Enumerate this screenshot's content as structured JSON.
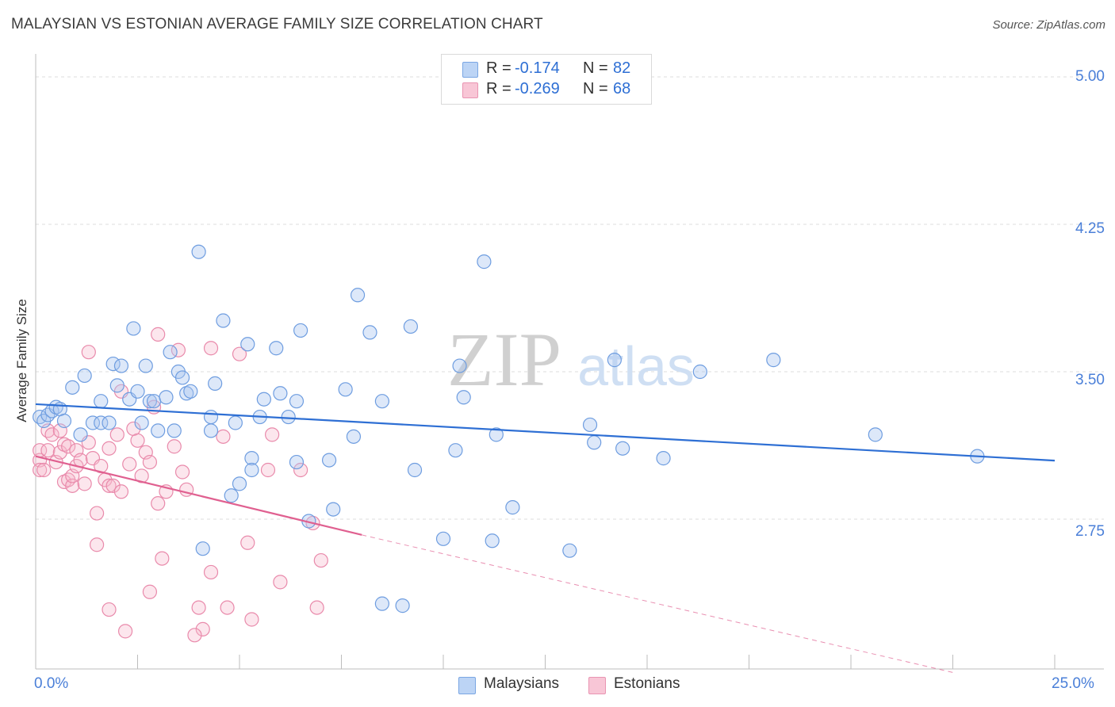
{
  "header": {
    "title": "MALAYSIAN VS ESTONIAN AVERAGE FAMILY SIZE CORRELATION CHART",
    "source": "Source: ZipAtlas.com"
  },
  "watermark": {
    "zip": "ZIP",
    "atlas": "atlas"
  },
  "legend_top": {
    "rows": [
      {
        "r_label": "R =",
        "r_value": "-0.174",
        "n_label": "N =",
        "n_value": "82"
      },
      {
        "r_label": "R =",
        "r_value": "-0.269",
        "n_label": "N =",
        "n_value": "68"
      }
    ]
  },
  "legend_bottom": {
    "series1": "Malaysians",
    "series2": "Estonians"
  },
  "axis": {
    "x_min_label": "0.0%",
    "x_max_label": "25.0%",
    "y_label": "Average Family Size",
    "y_ticks": [
      "5.00",
      "4.25",
      "3.50",
      "2.75"
    ]
  },
  "colors": {
    "blue_fill": "#a9c6f0",
    "blue_stroke": "#6e9de0",
    "blue_line": "#2e6fd4",
    "pink_fill": "#f5b8cc",
    "pink_stroke": "#e98aab",
    "pink_line": "#e06090",
    "grid": "#dddddd",
    "axis_text": "#4a7fd8"
  },
  "chart_data": {
    "type": "scatter",
    "title": "MALAYSIAN VS ESTONIAN AVERAGE FAMILY SIZE CORRELATION CHART",
    "xlabel": "",
    "ylabel": "Average Family Size",
    "xlim": [
      0,
      25
    ],
    "ylim": [
      2.0,
      5.1
    ],
    "y_ticks": [
      2.75,
      3.5,
      4.25,
      5.0
    ],
    "x_ticks": [
      0,
      2.5,
      5,
      7.5,
      10,
      12.5,
      15,
      17.5,
      20,
      22.5,
      25
    ],
    "grid": true,
    "legend_position": "bottom",
    "series": [
      {
        "name": "Malaysians",
        "r": -0.174,
        "n": 82,
        "trend": {
          "x": [
            0,
            25
          ],
          "y": [
            3.335,
            3.048
          ]
        },
        "points": [
          [
            0.1,
            3.27
          ],
          [
            0.2,
            3.25
          ],
          [
            0.3,
            3.28
          ],
          [
            0.4,
            3.3
          ],
          [
            0.5,
            3.32
          ],
          [
            0.6,
            3.31
          ],
          [
            0.7,
            3.25
          ],
          [
            0.9,
            3.42
          ],
          [
            1.1,
            3.18
          ],
          [
            1.2,
            3.48
          ],
          [
            1.4,
            3.24
          ],
          [
            1.6,
            3.24
          ],
          [
            1.6,
            3.35
          ],
          [
            1.8,
            3.24
          ],
          [
            1.9,
            3.54
          ],
          [
            2.0,
            3.43
          ],
          [
            2.1,
            3.53
          ],
          [
            2.3,
            3.36
          ],
          [
            2.4,
            3.72
          ],
          [
            2.5,
            3.4
          ],
          [
            2.6,
            3.24
          ],
          [
            2.7,
            3.53
          ],
          [
            2.8,
            3.35
          ],
          [
            2.9,
            3.35
          ],
          [
            3.0,
            3.2
          ],
          [
            3.2,
            3.37
          ],
          [
            3.3,
            3.6
          ],
          [
            3.4,
            3.2
          ],
          [
            3.5,
            3.5
          ],
          [
            3.6,
            3.47
          ],
          [
            3.7,
            3.39
          ],
          [
            3.8,
            3.4
          ],
          [
            4.0,
            4.11
          ],
          [
            4.1,
            2.6
          ],
          [
            4.3,
            3.2
          ],
          [
            4.3,
            3.27
          ],
          [
            4.4,
            3.44
          ],
          [
            4.6,
            3.76
          ],
          [
            4.8,
            2.87
          ],
          [
            4.9,
            3.24
          ],
          [
            5.0,
            2.93
          ],
          [
            5.2,
            3.64
          ],
          [
            5.3,
            3.06
          ],
          [
            5.3,
            3.0
          ],
          [
            5.5,
            3.27
          ],
          [
            5.6,
            3.36
          ],
          [
            5.9,
            3.62
          ],
          [
            6.0,
            3.39
          ],
          [
            6.2,
            3.27
          ],
          [
            6.4,
            3.04
          ],
          [
            6.4,
            3.35
          ],
          [
            6.5,
            3.71
          ],
          [
            6.7,
            2.74
          ],
          [
            7.2,
            3.05
          ],
          [
            7.3,
            2.8
          ],
          [
            7.6,
            3.41
          ],
          [
            7.8,
            3.17
          ],
          [
            7.9,
            3.89
          ],
          [
            8.2,
            3.7
          ],
          [
            8.5,
            2.32
          ],
          [
            8.5,
            3.35
          ],
          [
            9.0,
            2.31
          ],
          [
            9.2,
            3.73
          ],
          [
            9.3,
            3.0
          ],
          [
            10.0,
            2.65
          ],
          [
            10.3,
            3.1
          ],
          [
            10.4,
            3.53
          ],
          [
            10.5,
            3.37
          ],
          [
            11.0,
            4.06
          ],
          [
            11.2,
            2.64
          ],
          [
            11.3,
            3.18
          ],
          [
            11.7,
            2.81
          ],
          [
            13.1,
            2.59
          ],
          [
            13.6,
            3.23
          ],
          [
            13.7,
            3.14
          ],
          [
            14.2,
            3.56
          ],
          [
            14.4,
            3.11
          ],
          [
            15.4,
            3.06
          ],
          [
            16.3,
            3.5
          ],
          [
            18.1,
            3.56
          ],
          [
            20.6,
            3.18
          ],
          [
            23.1,
            3.07
          ]
        ]
      },
      {
        "name": "Estonians",
        "r": -0.269,
        "n": 68,
        "trend": {
          "x": [
            0,
            8.0
          ],
          "y": [
            3.07,
            2.67
          ]
        },
        "trend_extension": {
          "x": [
            8.0,
            22.5
          ],
          "y": [
            2.67,
            1.97
          ]
        },
        "points": [
          [
            0.1,
            3.05
          ],
          [
            0.1,
            3.1
          ],
          [
            0.1,
            3.0
          ],
          [
            0.2,
            3.0
          ],
          [
            0.3,
            3.1
          ],
          [
            0.3,
            3.2
          ],
          [
            0.4,
            3.18
          ],
          [
            0.5,
            3.04
          ],
          [
            0.6,
            3.09
          ],
          [
            0.6,
            3.2
          ],
          [
            0.7,
            2.94
          ],
          [
            0.7,
            3.13
          ],
          [
            0.8,
            2.95
          ],
          [
            0.8,
            3.12
          ],
          [
            0.9,
            2.92
          ],
          [
            0.9,
            2.97
          ],
          [
            1.0,
            3.1
          ],
          [
            1.0,
            3.02
          ],
          [
            1.1,
            3.05
          ],
          [
            1.2,
            2.93
          ],
          [
            1.3,
            3.14
          ],
          [
            1.4,
            3.06
          ],
          [
            1.5,
            2.78
          ],
          [
            1.6,
            3.02
          ],
          [
            1.7,
            2.95
          ],
          [
            1.8,
            3.11
          ],
          [
            1.8,
            2.92
          ],
          [
            1.9,
            2.92
          ],
          [
            2.0,
            3.18
          ],
          [
            2.1,
            2.89
          ],
          [
            2.1,
            3.4
          ],
          [
            2.3,
            3.03
          ],
          [
            2.4,
            3.21
          ],
          [
            2.5,
            3.15
          ],
          [
            2.6,
            2.97
          ],
          [
            2.7,
            3.09
          ],
          [
            2.8,
            3.04
          ],
          [
            2.9,
            3.32
          ],
          [
            3.0,
            3.69
          ],
          [
            3.0,
            2.83
          ],
          [
            3.1,
            2.55
          ],
          [
            3.2,
            2.89
          ],
          [
            3.4,
            3.12
          ],
          [
            3.5,
            3.61
          ],
          [
            3.6,
            2.99
          ],
          [
            3.7,
            2.9
          ],
          [
            4.0,
            2.3
          ],
          [
            4.1,
            2.19
          ],
          [
            4.3,
            2.48
          ],
          [
            4.3,
            3.62
          ],
          [
            4.6,
            3.17
          ],
          [
            4.7,
            2.3
          ],
          [
            5.0,
            3.59
          ],
          [
            5.2,
            2.63
          ],
          [
            5.3,
            2.24
          ],
          [
            5.7,
            3.0
          ],
          [
            5.8,
            3.18
          ],
          [
            6.0,
            2.43
          ],
          [
            6.5,
            3.0
          ],
          [
            6.8,
            2.73
          ],
          [
            7.0,
            2.54
          ],
          [
            1.3,
            3.6
          ],
          [
            1.5,
            2.62
          ],
          [
            1.8,
            2.29
          ],
          [
            2.2,
            2.18
          ],
          [
            3.9,
            2.16
          ],
          [
            2.8,
            2.38
          ],
          [
            6.9,
            2.3
          ]
        ]
      }
    ]
  }
}
